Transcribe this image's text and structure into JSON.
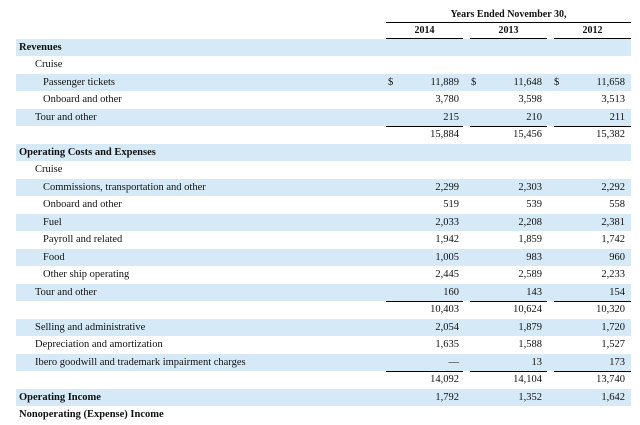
{
  "header": {
    "title": "Years Ended November 30,",
    "years": [
      "2014",
      "2013",
      "2012"
    ]
  },
  "currency_symbol": "$",
  "rows": [
    {
      "label": "Revenues",
      "level": 0,
      "shade": true
    },
    {
      "label": "Cruise",
      "level": 1,
      "shade": false
    },
    {
      "label": "Passenger tickets",
      "level": 2,
      "shade": true,
      "currency": true,
      "values": [
        "11,889",
        "11,648",
        "11,658"
      ]
    },
    {
      "label": "Onboard and other",
      "level": 2,
      "shade": false,
      "values": [
        "3,780",
        "3,598",
        "3,513"
      ]
    },
    {
      "label": "Tour and other",
      "level": 1,
      "shade": true,
      "values": [
        "215",
        "210",
        "211"
      ],
      "rule_below": true
    },
    {
      "label": "",
      "level": 1,
      "shade": false,
      "values": [
        "15,884",
        "15,456",
        "15,382"
      ]
    },
    {
      "label": "Operating Costs and Expenses",
      "level": 0,
      "shade": true
    },
    {
      "label": "Cruise",
      "level": 1,
      "shade": false
    },
    {
      "label": "Commissions, transportation and other",
      "level": 2,
      "shade": true,
      "values": [
        "2,299",
        "2,303",
        "2,292"
      ]
    },
    {
      "label": "Onboard and other",
      "level": 2,
      "shade": false,
      "values": [
        "519",
        "539",
        "558"
      ]
    },
    {
      "label": "Fuel",
      "level": 2,
      "shade": true,
      "values": [
        "2,033",
        "2,208",
        "2,381"
      ]
    },
    {
      "label": "Payroll and related",
      "level": 2,
      "shade": false,
      "values": [
        "1,942",
        "1,859",
        "1,742"
      ]
    },
    {
      "label": "Food",
      "level": 2,
      "shade": true,
      "values": [
        "1,005",
        "983",
        "960"
      ]
    },
    {
      "label": "Other ship operating",
      "level": 2,
      "shade": false,
      "values": [
        "2,445",
        "2,589",
        "2,233"
      ]
    },
    {
      "label": "Tour and other",
      "level": 1,
      "shade": true,
      "values": [
        "160",
        "143",
        "154"
      ],
      "rule_below": true
    },
    {
      "label": "",
      "level": 1,
      "shade": false,
      "values": [
        "10,403",
        "10,624",
        "10,320"
      ]
    },
    {
      "label": "Selling and administrative",
      "level": 1,
      "shade": true,
      "values": [
        "2,054",
        "1,879",
        "1,720"
      ]
    },
    {
      "label": "Depreciation and amortization",
      "level": 1,
      "shade": false,
      "values": [
        "1,635",
        "1,588",
        "1,527"
      ]
    },
    {
      "label": "Ibero goodwill and trademark impairment charges",
      "level": 1,
      "shade": true,
      "values": [
        "—",
        "13",
        "173"
      ],
      "rule_below": true
    },
    {
      "label": "",
      "level": 1,
      "shade": false,
      "values": [
        "14,092",
        "14,104",
        "13,740"
      ]
    },
    {
      "label": "Operating Income",
      "level": 0,
      "shade": true,
      "values": [
        "1,792",
        "1,352",
        "1,642"
      ]
    },
    {
      "label": "Nonoperating (Expense) Income",
      "level": 0,
      "shade": false
    }
  ]
}
